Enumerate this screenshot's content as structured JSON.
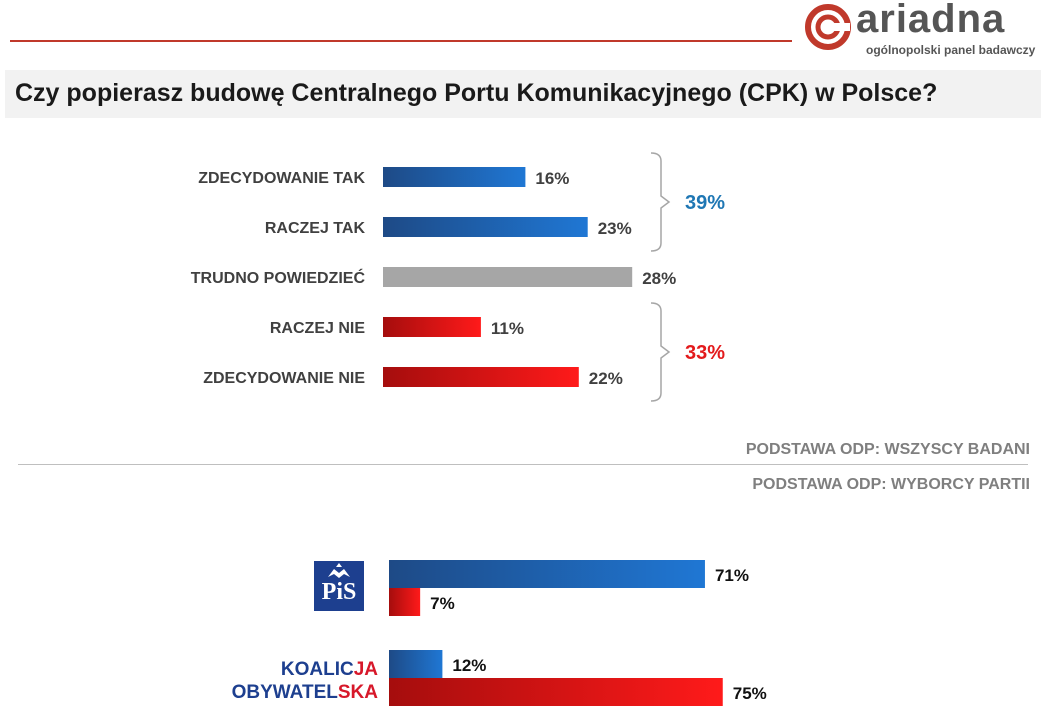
{
  "brand": {
    "name": "ariadna",
    "tagline": "ogólnopolski panel badawczy",
    "colors": {
      "red": "#c0392b",
      "gray": "#555555"
    }
  },
  "title": "Czy popierasz budowę Centralnego Portu Komunikacyjnego (CPK) w Polsce?",
  "notes": {
    "all_base": "PODSTAWA ODP: WSZYSCY BADANI",
    "party_base": "PODSTAWA ODP:  WYBORCY PARTII"
  },
  "chart_data": [
    {
      "type": "bar",
      "orientation": "horizontal",
      "unit": "%",
      "categories": [
        "ZDECYDOWANIE TAK",
        "RACZEJ TAK",
        "TRUDNO POWIEDZIEĆ",
        "RACZEJ NIE",
        "ZDECYDOWANIE NIE"
      ],
      "values": [
        16,
        23,
        28,
        11,
        22
      ],
      "colors": [
        "blue",
        "blue",
        "gray",
        "red",
        "red"
      ],
      "groups": [
        {
          "label": "39%",
          "value": 39,
          "members": [
            0,
            1
          ],
          "color": "#1f77b4"
        },
        {
          "label": "33%",
          "value": 33,
          "members": [
            3,
            4
          ],
          "color": "#e31a1c"
        }
      ],
      "xlim": [
        0,
        100
      ],
      "grid": false
    },
    {
      "type": "bar",
      "orientation": "horizontal",
      "unit": "%",
      "categories": [
        "PiS",
        "KOALICJA OBYWATELSKA"
      ],
      "series": [
        {
          "color": "blue",
          "values": [
            71,
            12
          ]
        },
        {
          "color": "red",
          "values": [
            7,
            75
          ]
        }
      ],
      "xlim": [
        0,
        100
      ],
      "grid": false
    }
  ],
  "logos": {
    "pis": {
      "text": "PiS"
    },
    "ko": {
      "line1_a": "KOALIC",
      "line1_b": "JA",
      "line2_a": "OBYWATEL",
      "line2_b": "SKA"
    }
  }
}
